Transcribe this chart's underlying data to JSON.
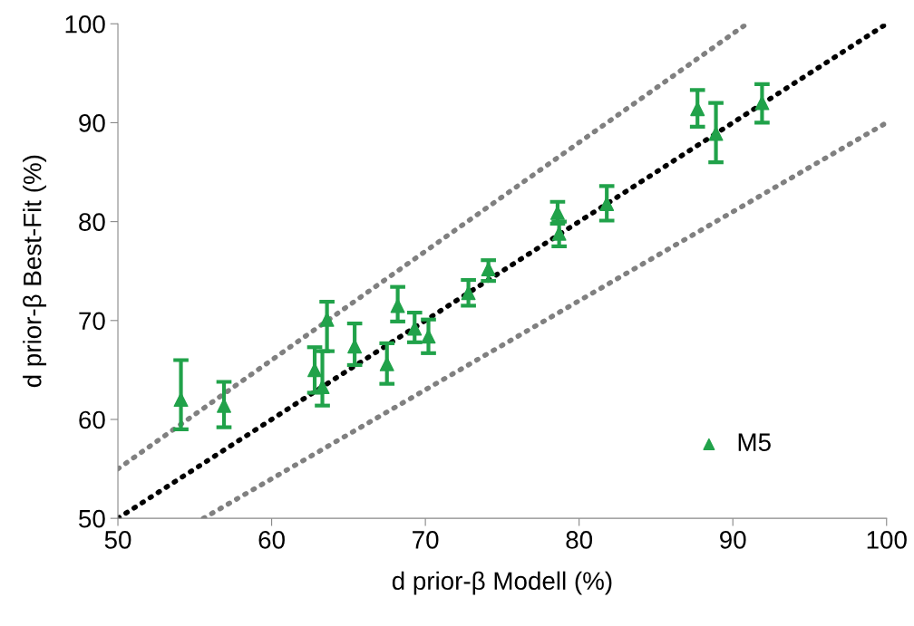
{
  "chart_data": {
    "type": "scatter",
    "xlabel": "d prior-β Modell (%)",
    "ylabel": "d prior-β Best-Fit (%)",
    "xlim": [
      50,
      100
    ],
    "ylim": [
      50,
      100
    ],
    "xticks": [
      50,
      60,
      70,
      80,
      90,
      100
    ],
    "yticks": [
      50,
      60,
      70,
      80,
      90,
      100
    ],
    "grid": false,
    "legend": "bottom right",
    "series": [
      {
        "type": "line",
        "color": "#000000",
        "line_style": "dotted",
        "marker": "none",
        "x": [
          50,
          100
        ],
        "values": [
          50,
          100
        ]
      },
      {
        "type": "line",
        "color": "#808080",
        "line_style": "dotted",
        "marker": "none",
        "x": [
          50,
          90.91
        ],
        "values": [
          55,
          100
        ]
      },
      {
        "type": "line",
        "color": "#808080",
        "line_style": "dotted",
        "marker": "none",
        "x": [
          55.56,
          100
        ],
        "values": [
          50,
          90
        ]
      },
      {
        "name": "M5",
        "color": "#21a24a",
        "marker": "triangle",
        "x": [
          54.1,
          56.9,
          62.8,
          63.3,
          63.6,
          65.4,
          67.5,
          68.2,
          69.3,
          70.2,
          72.8,
          74.1,
          78.6,
          78.7,
          81.8,
          87.7,
          88.9,
          91.9
        ],
        "values": [
          62.0,
          61.4,
          65.0,
          63.3,
          70.1,
          67.4,
          65.6,
          71.5,
          69.2,
          68.4,
          72.8,
          75.2,
          80.9,
          78.8,
          81.8,
          91.4,
          88.9,
          92.0
        ],
        "errors": [
          [
            59.0,
            66.0
          ],
          [
            59.2,
            63.8
          ],
          [
            62.7,
            67.3
          ],
          [
            61.4,
            66.9
          ],
          [
            66.9,
            71.9
          ],
          [
            65.5,
            69.7
          ],
          [
            63.6,
            67.7
          ],
          [
            69.9,
            73.4
          ],
          [
            67.8,
            70.8
          ],
          [
            66.7,
            70.1
          ],
          [
            71.5,
            74.1
          ],
          [
            74.0,
            76.1
          ],
          [
            79.8,
            82.0
          ],
          [
            77.5,
            80.0
          ],
          [
            80.1,
            83.6
          ],
          [
            89.6,
            93.3
          ],
          [
            86.0,
            92.0
          ],
          [
            90.0,
            93.9
          ]
        ]
      }
    ]
  }
}
